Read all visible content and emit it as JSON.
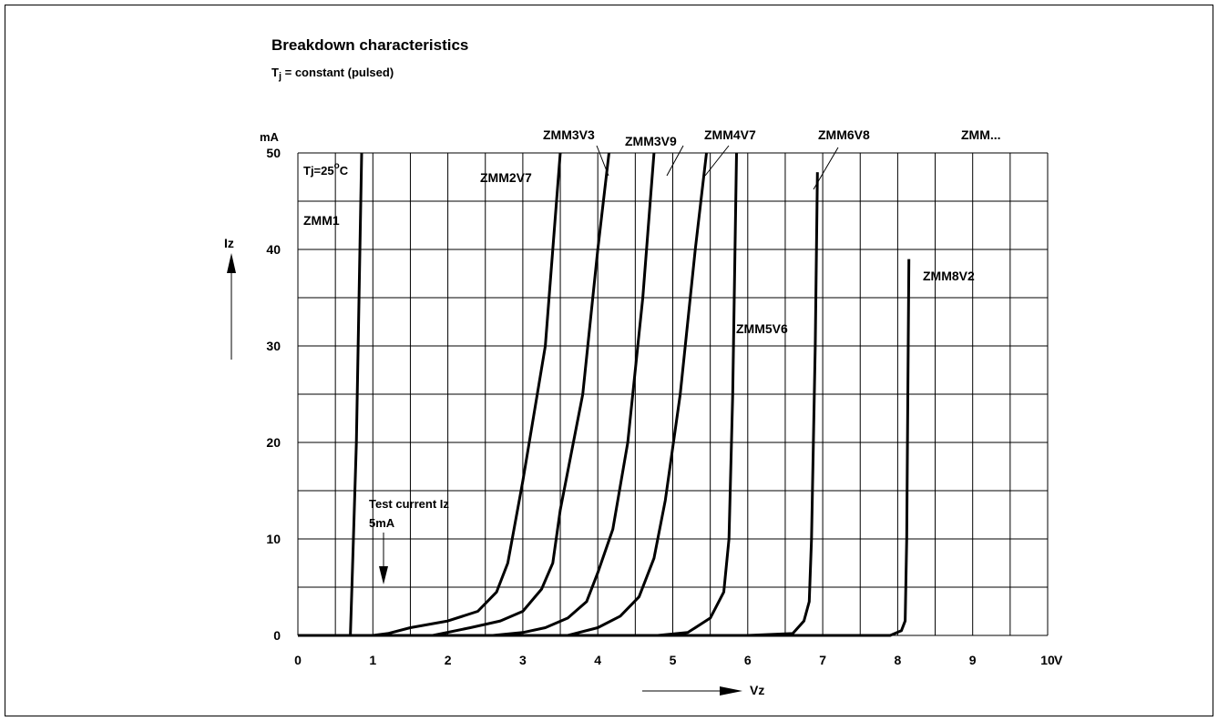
{
  "chart_data": {
    "type": "line",
    "title": "Breakdown characteristics",
    "subtitle_prefix": "T",
    "subtitle_sub": "j",
    "subtitle_rest": " = constant (pulsed)",
    "xlabel": "Vz",
    "x_unit": "V",
    "ylabel": "Iz",
    "y_unit": "mA",
    "xlim": [
      0,
      10
    ],
    "ylim": [
      0,
      50
    ],
    "x_ticks": [
      "0",
      "1",
      "2",
      "3",
      "4",
      "5",
      "6",
      "7",
      "8",
      "9",
      "10"
    ],
    "y_ticks": [
      "0",
      "10",
      "20",
      "30",
      "40",
      "50"
    ],
    "grid": true,
    "temperature_label": "Tj=25",
    "temperature_sup": "o",
    "temperature_unit": "C",
    "test_current": {
      "value": 5,
      "label_line1": "Test current Iz",
      "label_line2": "5mA"
    },
    "series": [
      {
        "name": "ZMM1",
        "points": [
          [
            0,
            0
          ],
          [
            0.7,
            0
          ],
          [
            0.72,
            5
          ],
          [
            0.78,
            20
          ],
          [
            0.85,
            50
          ]
        ]
      },
      {
        "name": "ZMM2V7",
        "points": [
          [
            1.0,
            0
          ],
          [
            1.2,
            0.2
          ],
          [
            1.5,
            0.8
          ],
          [
            2.0,
            1.5
          ],
          [
            2.4,
            2.5
          ],
          [
            2.65,
            4.5
          ],
          [
            2.8,
            7.5
          ],
          [
            3.0,
            16
          ],
          [
            3.3,
            30
          ],
          [
            3.5,
            50
          ]
        ]
      },
      {
        "name": "ZMM3V3",
        "points": [
          [
            1.8,
            0
          ],
          [
            2.3,
            0.8
          ],
          [
            2.7,
            1.5
          ],
          [
            3.0,
            2.5
          ],
          [
            3.25,
            4.8
          ],
          [
            3.4,
            7.5
          ],
          [
            3.5,
            13
          ],
          [
            3.8,
            25
          ],
          [
            4.0,
            40
          ],
          [
            4.15,
            50
          ]
        ]
      },
      {
        "name": "ZMM3V9",
        "points": [
          [
            2.6,
            0
          ],
          [
            3.0,
            0.3
          ],
          [
            3.3,
            0.8
          ],
          [
            3.6,
            1.8
          ],
          [
            3.85,
            3.5
          ],
          [
            4.0,
            6.5
          ],
          [
            4.2,
            11
          ],
          [
            4.4,
            20
          ],
          [
            4.6,
            35
          ],
          [
            4.75,
            50
          ]
        ]
      },
      {
        "name": "ZMM4V7",
        "points": [
          [
            3.6,
            0
          ],
          [
            4.0,
            0.8
          ],
          [
            4.3,
            2.0
          ],
          [
            4.55,
            4.0
          ],
          [
            4.75,
            8.0
          ],
          [
            4.9,
            14
          ],
          [
            5.1,
            25
          ],
          [
            5.3,
            40
          ],
          [
            5.45,
            50
          ]
        ]
      },
      {
        "name": "ZMM5V6",
        "points": [
          [
            4.8,
            0
          ],
          [
            5.2,
            0.3
          ],
          [
            5.5,
            1.8
          ],
          [
            5.68,
            4.5
          ],
          [
            5.75,
            10
          ],
          [
            5.8,
            25
          ],
          [
            5.85,
            50
          ]
        ]
      },
      {
        "name": "ZMM6V8",
        "points": [
          [
            6.0,
            0
          ],
          [
            6.6,
            0.2
          ],
          [
            6.75,
            1.5
          ],
          [
            6.82,
            3.5
          ],
          [
            6.85,
            10
          ],
          [
            6.9,
            30
          ],
          [
            6.93,
            48
          ]
        ]
      },
      {
        "name": "ZMM8V2",
        "points": [
          [
            0,
            0
          ],
          [
            7.9,
            0
          ],
          [
            8.05,
            0.5
          ],
          [
            8.1,
            1.5
          ],
          [
            8.12,
            10
          ],
          [
            8.15,
            39
          ]
        ]
      }
    ],
    "extra_label": "ZMM..."
  }
}
